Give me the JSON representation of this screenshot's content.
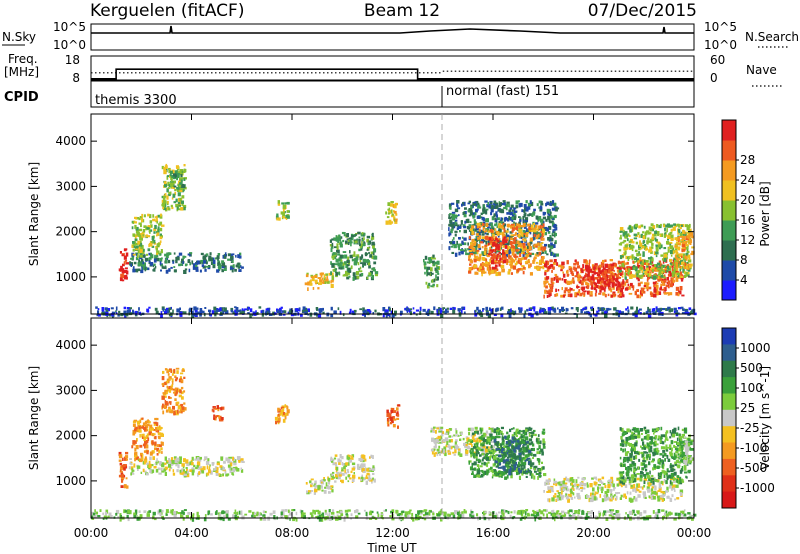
{
  "header": {
    "station": "Kerguelen (fitACF)",
    "beam": "Beam 12",
    "date": "07/Dec/2015"
  },
  "top_panels": {
    "nsky_label": "N.Sky",
    "nsky_ticks": [
      "10^5",
      "10^0"
    ],
    "nsearch_label": "N.Search",
    "nsearch_ticks": [
      "10^5",
      "10^0"
    ],
    "freq_label": "Freq.",
    "freq_unit": "[MHz]",
    "freq_ticks": [
      "18",
      "8"
    ],
    "nave_label": "Nave",
    "nave_ticks": [
      "60",
      "0"
    ],
    "cpid_label": "CPID",
    "cpid_modes": [
      {
        "name": "themis 3300",
        "start_hour": 0.0
      },
      {
        "name": "normal (fast) 151",
        "start_hour": 14.0
      }
    ]
  },
  "axes": {
    "x_ticks": [
      "00:00",
      "04:00",
      "08:00",
      "12:00",
      "16:00",
      "20:00",
      "00:00"
    ],
    "xlabel": "Time UT",
    "ylabel": "Slant Range [km]",
    "y_ticks": [
      "1000",
      "2000",
      "3000",
      "4000"
    ]
  },
  "power_colorbar": {
    "label": "Power [dB]",
    "ticks": [
      "4",
      "8",
      "12",
      "16",
      "20",
      "24",
      "28"
    ],
    "colors": [
      "#1c1cff",
      "#1e4aa8",
      "#2e6e50",
      "#3e9c55",
      "#88c030",
      "#f0c020",
      "#f49a20",
      "#ee5a20",
      "#e02020"
    ]
  },
  "velocity_colorbar": {
    "label": "Velocity [m s^-1]",
    "ticks": [
      "1000",
      "500",
      "100",
      "25",
      "-25",
      "-100",
      "-500",
      "-1000"
    ],
    "colors": [
      "#1c3cb4",
      "#2e5e8e",
      "#2e7a4a",
      "#3aa03a",
      "#7ccc3c",
      "#c8c8c8",
      "#f4c020",
      "#f49a20",
      "#ee6020",
      "#e03018",
      "#d81818"
    ]
  },
  "chart_data": {
    "type": "heatmap",
    "title": "Kerguelen (fitACF) Beam 12 07/Dec/2015",
    "xlabel": "Time UT",
    "ylabel": "Slant Range [km]",
    "xlim_hours": [
      0,
      24
    ],
    "ylim_km": [
      180,
      4600
    ],
    "freq_segments": [
      {
        "start": 0.0,
        "end": 1.0,
        "mhz": 8.5
      },
      {
        "start": 1.0,
        "end": 13.0,
        "mhz": 12.5
      },
      {
        "start": 13.0,
        "end": 24.0,
        "mhz": 8.5
      }
    ],
    "nave_dotted": [
      {
        "start": 0.0,
        "end": 14.0,
        "value": 18
      },
      {
        "start": 14.0,
        "end": 24.0,
        "value": 22
      }
    ],
    "power_regions": [
      {
        "t0": 1.1,
        "t1": 1.4,
        "r0": 900,
        "r1": 1700,
        "level": 8
      },
      {
        "t0": 1.5,
        "t1": 6.0,
        "r0": 1150,
        "r1": 1550,
        "level": 2
      },
      {
        "t0": 1.6,
        "t1": 2.8,
        "r0": 1500,
        "r1": 2400,
        "level": 4
      },
      {
        "t0": 2.8,
        "t1": 3.7,
        "r0": 2500,
        "r1": 3500,
        "level": 4
      },
      {
        "t0": 3.1,
        "t1": 3.7,
        "r0": 3000,
        "r1": 3400,
        "level": 3
      },
      {
        "t0": 7.3,
        "t1": 7.8,
        "r0": 2300,
        "r1": 2700,
        "level": 4
      },
      {
        "t0": 8.5,
        "t1": 9.6,
        "r0": 750,
        "r1": 1100,
        "level": 5
      },
      {
        "t0": 9.5,
        "t1": 11.3,
        "r0": 1000,
        "r1": 2000,
        "level": 3
      },
      {
        "t0": 11.7,
        "t1": 12.2,
        "r0": 2200,
        "r1": 2700,
        "level": 5
      },
      {
        "t0": 13.2,
        "t1": 13.8,
        "r0": 800,
        "r1": 1500,
        "level": 3
      },
      {
        "t0": 14.2,
        "t1": 18.5,
        "r0": 1500,
        "r1": 2700,
        "level": 2
      },
      {
        "t0": 15.0,
        "t1": 18.0,
        "r0": 1100,
        "r1": 2200,
        "level": 6
      },
      {
        "t0": 15.8,
        "t1": 16.5,
        "r0": 1200,
        "r1": 1900,
        "level": 8
      },
      {
        "t0": 18.0,
        "t1": 23.5,
        "r0": 600,
        "r1": 1400,
        "level": 7
      },
      {
        "t0": 19.5,
        "t1": 21.2,
        "r0": 750,
        "r1": 1300,
        "level": 8
      },
      {
        "t0": 21.0,
        "t1": 23.8,
        "r0": 1000,
        "r1": 2200,
        "level": 4
      },
      {
        "t0": 23.2,
        "t1": 23.9,
        "r0": 1200,
        "r1": 2000,
        "level": 6
      },
      {
        "t0": 0.0,
        "t1": 24.0,
        "r0": 180,
        "r1": 350,
        "level": 1
      }
    ],
    "velocity_regions": [
      {
        "t0": 1.1,
        "t1": 1.4,
        "r0": 900,
        "r1": 1700,
        "level": 8
      },
      {
        "t0": 1.5,
        "t1": 6.0,
        "r0": 1150,
        "r1": 1550,
        "level": 5
      },
      {
        "t0": 1.6,
        "t1": 2.8,
        "r0": 1500,
        "r1": 2400,
        "level": 7
      },
      {
        "t0": 2.8,
        "t1": 3.7,
        "r0": 2500,
        "r1": 3500,
        "level": 7
      },
      {
        "t0": 4.8,
        "t1": 5.2,
        "r0": 2400,
        "r1": 2700,
        "level": 8
      },
      {
        "t0": 7.3,
        "t1": 7.8,
        "r0": 2300,
        "r1": 2700,
        "level": 7
      },
      {
        "t0": 8.5,
        "t1": 9.6,
        "r0": 750,
        "r1": 1100,
        "level": 5
      },
      {
        "t0": 9.5,
        "t1": 11.3,
        "r0": 1000,
        "r1": 1600,
        "level": 5
      },
      {
        "t0": 11.7,
        "t1": 12.2,
        "r0": 2200,
        "r1": 2700,
        "level": 8
      },
      {
        "t0": 13.5,
        "t1": 16.0,
        "r0": 1600,
        "r1": 2200,
        "level": 5
      },
      {
        "t0": 15.0,
        "t1": 18.0,
        "r0": 1100,
        "r1": 2200,
        "level": 3
      },
      {
        "t0": 16.0,
        "t1": 17.5,
        "r0": 1200,
        "r1": 2000,
        "level": 2
      },
      {
        "t0": 18.0,
        "t1": 23.5,
        "r0": 600,
        "r1": 1100,
        "level": 5
      },
      {
        "t0": 21.0,
        "t1": 23.8,
        "r0": 1000,
        "r1": 2200,
        "level": 3
      },
      {
        "t0": 23.3,
        "t1": 23.9,
        "r0": 1300,
        "r1": 2000,
        "level": 4
      },
      {
        "t0": 0.0,
        "t1": 24.0,
        "r0": 180,
        "r1": 380,
        "level": 4
      }
    ]
  }
}
